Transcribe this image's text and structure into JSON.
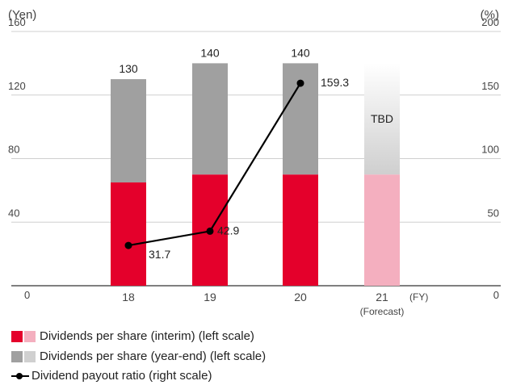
{
  "chart_data": {
    "type": "bar",
    "left_axis_title": "(Yen)",
    "right_axis_title": "(%)",
    "x_unit": "(FY)",
    "categories": [
      "18",
      "19",
      "20",
      "21"
    ],
    "category_sublabels": [
      "",
      "",
      "",
      "(Forecast)"
    ],
    "left_ticks": [
      0,
      40,
      80,
      120,
      160
    ],
    "right_ticks": [
      0,
      50,
      100,
      150,
      200
    ],
    "ylim_left": [
      0,
      160
    ],
    "ylim_right": [
      0,
      200
    ],
    "grid": true,
    "stacked_series": [
      {
        "name": "Dividends per share (interim) (left scale)",
        "values": [
          65,
          70,
          70,
          70
        ],
        "color": "#E4002B",
        "forecast_color": "#F4AFBF"
      },
      {
        "name": "Dividends per share (year-end) (left scale)",
        "values": [
          65,
          70,
          70,
          null
        ],
        "color": "#A0A0A0",
        "forecast_color": "#D0D0D0"
      }
    ],
    "bar_totals": [
      "130",
      "140",
      "140",
      "TBD"
    ],
    "forecast_index": 3,
    "line_series": {
      "name": "Dividend payout ratio (right scale)",
      "values": [
        31.7,
        42.9,
        159.3
      ],
      "labels": [
        "31.7",
        "42.9",
        "159.3"
      ],
      "color": "#000000"
    }
  },
  "legend": {
    "interim": "Dividends per share (interim) (left scale)",
    "yearend": "Dividends per share (year-end) (left scale)",
    "payout": "Dividend payout ratio (right scale)"
  }
}
